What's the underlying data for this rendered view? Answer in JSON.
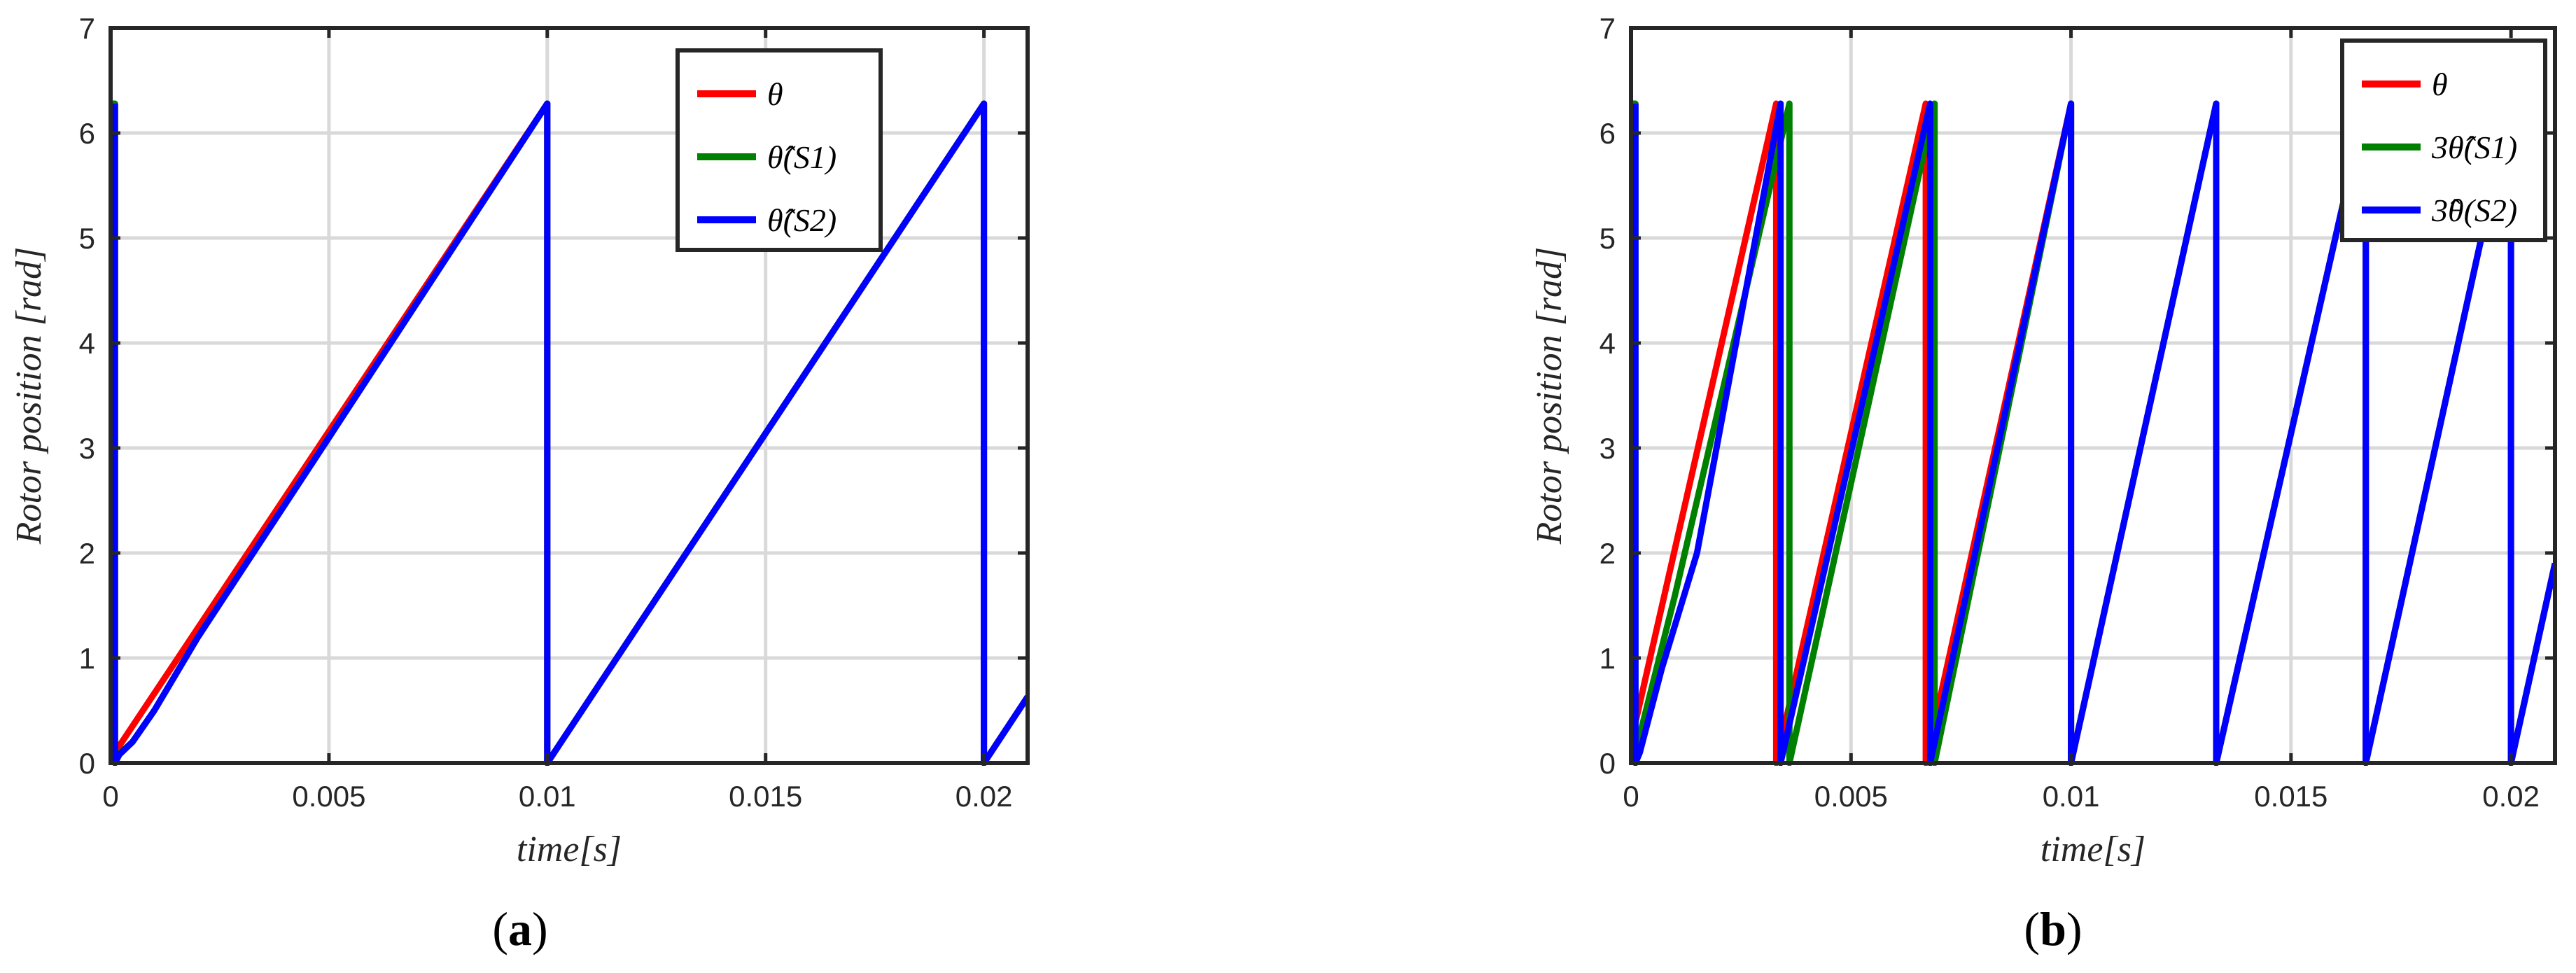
{
  "chart_data": [
    {
      "type": "line",
      "panel_label": "(a)",
      "panel_letter": "a",
      "xlabel": "time[s]",
      "ylabel": "Rotor position [rad]",
      "xlim": [
        0,
        0.021
      ],
      "ylim": [
        0,
        7
      ],
      "xticks": [
        0,
        0.005,
        0.01,
        0.015,
        0.02
      ],
      "xtick_labels": [
        "0",
        "0.005",
        "0.01",
        "0.015",
        "0.02"
      ],
      "yticks": [
        0,
        1,
        2,
        3,
        4,
        5,
        6,
        7
      ],
      "ytick_labels": [
        "0",
        "1",
        "2",
        "3",
        "4",
        "5",
        "6",
        "7"
      ],
      "grid": true,
      "legend_position": "top-right",
      "series": [
        {
          "name": "θ",
          "color": "#ff0000",
          "x": [
            0,
            0.0001,
            0.01,
            0.01,
            0.02,
            0.02,
            0.021
          ],
          "y": [
            0,
            0.1,
            6.28,
            0,
            6.28,
            0,
            0.63
          ]
        },
        {
          "name": "θ̂(S1)",
          "color": "#008000",
          "x": [
            0,
            0.0001,
            0.0001,
            0.0005,
            0.001,
            0.002,
            0.005,
            0.01,
            0.01,
            0.02,
            0.02,
            0.021
          ],
          "y": [
            6.28,
            6.28,
            0.05,
            0.2,
            0.5,
            1.2,
            3.1,
            6.28,
            0,
            6.28,
            0,
            0.63
          ]
        },
        {
          "name": "θ̂(S2)",
          "color": "#0000ff",
          "x": [
            0.0001,
            0.0001,
            0.0002,
            0.0005,
            0.001,
            0.002,
            0.005,
            0.01,
            0.01,
            0.02,
            0.02,
            0.021
          ],
          "y": [
            6.28,
            0,
            0.08,
            0.2,
            0.5,
            1.2,
            3.1,
            6.28,
            0,
            6.28,
            0,
            0.63
          ]
        }
      ]
    },
    {
      "type": "line",
      "panel_label": "(b)",
      "panel_letter": "b",
      "xlabel": "time[s]",
      "ylabel": "Rotor position [rad]",
      "xlim": [
        0,
        0.021
      ],
      "ylim": [
        0,
        7
      ],
      "xticks": [
        0,
        0.005,
        0.01,
        0.015,
        0.02
      ],
      "xtick_labels": [
        "0",
        "0.005",
        "0.01",
        "0.015",
        "0.02"
      ],
      "yticks": [
        0,
        1,
        2,
        3,
        4,
        5,
        6,
        7
      ],
      "ytick_labels": [
        "0",
        "1",
        "2",
        "3",
        "4",
        "5",
        "6",
        "7"
      ],
      "grid": true,
      "legend_position": "top-right",
      "series": [
        {
          "name": "θ",
          "color": "#ff0000",
          "x": [
            0,
            0.0033,
            0.0033,
            0.0067,
            0.0067,
            0.01,
            0.01,
            0.0133,
            0.0133,
            0.0167,
            0.0167,
            0.02,
            0.02,
            0.021
          ],
          "y": [
            0.2,
            6.28,
            0,
            6.28,
            0,
            6.28,
            0,
            6.28,
            0,
            6.28,
            0,
            6.28,
            0,
            1.9
          ]
        },
        {
          "name": "3θ̂(S1)",
          "color": "#008000",
          "x": [
            0,
            0.0001,
            0.0001,
            0.001,
            0.0036,
            0.0036,
            0.0069,
            0.0069,
            0.01,
            0.01,
            0.0133,
            0.0133,
            0.0167,
            0.0167,
            0.02,
            0.02,
            0.021
          ],
          "y": [
            6.28,
            6.28,
            0.1,
            1.6,
            6.28,
            0,
            6.28,
            0,
            6.28,
            0,
            6.28,
            0,
            6.28,
            0,
            6.28,
            0,
            1.9
          ]
        },
        {
          "name": "3̂θ(S2)",
          "color": "#0000ff",
          "x": [
            0.0001,
            0.0001,
            0.0002,
            0.0007,
            0.0015,
            0.0034,
            0.0034,
            0.0068,
            0.0068,
            0.01,
            0.01,
            0.0133,
            0.0133,
            0.0167,
            0.0167,
            0.02,
            0.02,
            0.021
          ],
          "y": [
            6.28,
            0,
            0.1,
            0.9,
            2.0,
            6.28,
            0,
            6.28,
            0,
            6.28,
            0,
            6.28,
            0,
            6.28,
            0,
            6.28,
            0,
            1.9
          ]
        }
      ]
    }
  ]
}
